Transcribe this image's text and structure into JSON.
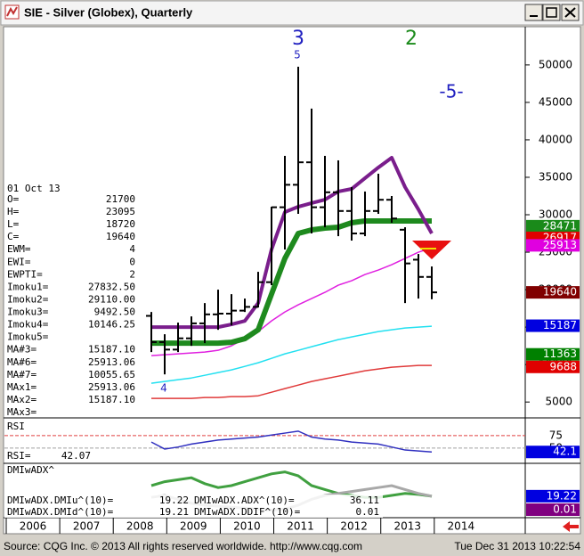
{
  "window": {
    "title": "SIE - Silver (Globex), Quarterly"
  },
  "chart_data": {
    "type": "ohlc",
    "ylim": [
      3000,
      55100
    ],
    "yticks": [
      5000,
      10000,
      15000,
      20000,
      25000,
      30000,
      35000,
      40000,
      45000,
      50000
    ],
    "xlim": [
      2005.95,
      2015.7
    ],
    "xticks": [
      2006,
      2007,
      2008,
      2009,
      2010,
      2011,
      2012,
      2013,
      2014
    ],
    "open": [
      16500,
      13000,
      12000,
      13500,
      15500,
      16700,
      16800,
      17200,
      17700,
      21000,
      31000,
      34000,
      37000,
      31000,
      33000,
      30500,
      27500,
      30500,
      32000,
      28000,
      24000,
      21700
    ],
    "high": [
      17020,
      14050,
      15600,
      16430,
      18210,
      20000,
      19400,
      18810,
      22380,
      31070,
      37860,
      49760,
      44170,
      37860,
      37260,
      33690,
      33100,
      35480,
      32500,
      28330,
      24760,
      23095
    ],
    "low": [
      11670,
      8690,
      11670,
      12500,
      12860,
      14640,
      15240,
      17020,
      17620,
      20600,
      25360,
      30120,
      27500,
      28330,
      27140,
      26550,
      27140,
      30120,
      28930,
      18210,
      18810,
      18720
    ],
    "close": [
      13000,
      12000,
      13500,
      15500,
      16700,
      16800,
      17200,
      17700,
      21000,
      31000,
      34000,
      37000,
      31000,
      33000,
      30500,
      27500,
      30500,
      32000,
      29500,
      23500,
      21700,
      19640
    ],
    "lines": [
      {
        "color": "#e03a3a",
        "width": 1.5,
        "values": [
          5480,
          5480,
          5480,
          5480,
          5600,
          5600,
          5720,
          5720,
          5830,
          6310,
          6790,
          7260,
          7740,
          8100,
          8450,
          8810,
          9170,
          9410,
          9640,
          9760,
          9880,
          9880
        ]
      },
      {
        "color": "#22e0f0",
        "width": 1.5,
        "values": [
          7500,
          7740,
          7980,
          8210,
          8570,
          8930,
          9290,
          9760,
          10240,
          10830,
          11430,
          11900,
          12380,
          12860,
          13330,
          13690,
          14050,
          14400,
          14640,
          14880,
          15000,
          15120
        ]
      },
      {
        "color": "#e020e0",
        "width": 1.5,
        "values": [
          11190,
          11310,
          11430,
          11550,
          11670,
          11900,
          12500,
          13450,
          14400,
          15830,
          17020,
          17980,
          18810,
          19640,
          20600,
          21190,
          22020,
          22620,
          23330,
          24170,
          25000,
          25600
        ]
      },
      {
        "color": "#1e8a1e",
        "width": 6,
        "values": [
          12860,
          12860,
          12860,
          12860,
          12860,
          12860,
          12980,
          13450,
          14640,
          19400,
          24170,
          27500,
          27980,
          28210,
          28330,
          28930,
          29170,
          29170,
          29170,
          29170,
          29170,
          29170
        ]
      },
      {
        "color": "#7a1e8c",
        "width": 4,
        "values": [
          15000,
          15000,
          15000,
          15000,
          15000,
          15000,
          15360,
          15830,
          18210,
          25360,
          30360,
          31070,
          31550,
          32020,
          33100,
          33450,
          34880,
          36310,
          37620,
          33690,
          30710,
          27500
        ]
      }
    ],
    "price_labels": [
      {
        "value": 28471,
        "color": "#1a8a1a"
      },
      {
        "value": 26917,
        "color": "#e00000"
      },
      {
        "value": 25913,
        "color": "#e000e0"
      },
      {
        "value": 19640,
        "color": "#800000"
      },
      {
        "value": 15187,
        "color": "#0000e0"
      },
      {
        "value": 11363,
        "color": "#008000"
      },
      {
        "value": 9688,
        "color": "#e00000"
      }
    ],
    "annotations": [
      "3",
      "5",
      "2",
      "-5-",
      "4"
    ]
  },
  "info": {
    "date": "01 Oct 13",
    "rows": [
      {
        "label": "O=",
        "value": "21700"
      },
      {
        "label": "H=",
        "value": "23095"
      },
      {
        "label": "L=",
        "value": "18720"
      },
      {
        "label": "C=",
        "value": "19640"
      },
      {
        "label": "EWM=",
        "value": "4"
      },
      {
        "label": "EWI=",
        "value": "0"
      },
      {
        "label": "EWPTI=",
        "value": "2"
      },
      {
        "label": "Imoku1=",
        "value": "27832.50"
      },
      {
        "label": "Imoku2=",
        "value": "29110.00"
      },
      {
        "label": "Imoku3=",
        "value": "9492.50"
      },
      {
        "label": "Imoku4=",
        "value": "10146.25"
      },
      {
        "label": "Imoku5="
      },
      {
        "label": "MA#3=",
        "value": "15187.10"
      },
      {
        "label": "MA#6=",
        "value": "25913.06"
      },
      {
        "label": "MA#7=",
        "value": "10055.65"
      },
      {
        "label": "MAx1=",
        "value": "25913.06"
      },
      {
        "label": "MAx2=",
        "value": "15187.10"
      },
      {
        "label": "MAx3="
      }
    ]
  },
  "rsi": {
    "label": "RSI",
    "ylim": [
      21,
      107
    ],
    "yticks": [
      50,
      75
    ],
    "grid_colors": [
      "#a0a0a0",
      "#e04040"
    ],
    "values": [
      62,
      48,
      52,
      58,
      62,
      66,
      68,
      70,
      72,
      76,
      80,
      84,
      72,
      68,
      66,
      62,
      60,
      58,
      52,
      46,
      44,
      42.07
    ],
    "readout": {
      "label": "RSI=",
      "value": 42.07
    },
    "box_label": "42.1",
    "color": "#3030c0"
  },
  "dmi": {
    "label": "DMIwADX^",
    "ylim": [
      0,
      50
    ],
    "series": [
      {
        "color": "#40a040",
        "values": [
          30,
          34,
          36,
          38,
          32,
          28,
          30,
          34,
          38,
          42,
          44,
          40,
          30,
          26,
          22,
          20,
          18,
          18,
          20,
          22,
          21,
          19.22
        ]
      },
      {
        "color": "#a8a8a8",
        "values": [
          18,
          20,
          16,
          12,
          10,
          9,
          8,
          7,
          6,
          5,
          6,
          10,
          16,
          20,
          22,
          24,
          26,
          28,
          30,
          26,
          22,
          19.21
        ]
      }
    ],
    "readouts": [
      {
        "label": "DMIwADX.DMIu^(10)=",
        "value": 19.22
      },
      {
        "label": "DMIwADX.ADX^(10)=",
        "value": 36.11
      },
      {
        "label": "DMIwADX.DMId^(10)=",
        "value": 19.21
      },
      {
        "label": "DMIwADX.DDIF^(10)=",
        "value": 0.01
      }
    ],
    "boxes": [
      {
        "value": 19.22,
        "color": "#0000e0"
      },
      {
        "value": 0.01,
        "color": "#800080"
      }
    ]
  },
  "status": {
    "source": "Source: CQG Inc. © 2013 All rights reserved worldwide. http://www.cqg.com",
    "time": "Tue Dec 31 2013 10:22:54"
  }
}
